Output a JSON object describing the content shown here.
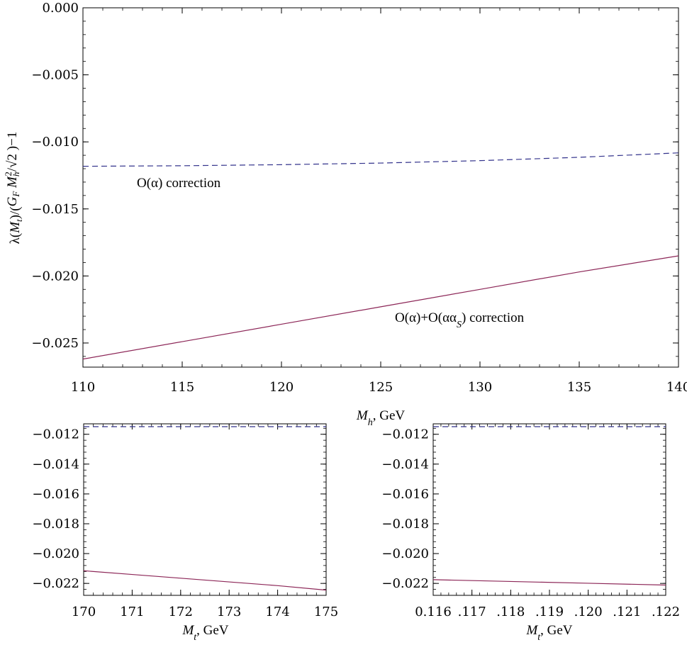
{
  "colors": {
    "dashed_series": "#33338c",
    "solid_series": "#8c2657",
    "frame": "#000000"
  },
  "chart_data": [
    {
      "type": "line",
      "xlabel": "M_h, GeV",
      "ylabel": "λ(M_t)/(G_F M_h^2/√2)−1",
      "xlim": [
        110,
        140
      ],
      "ylim": [
        -0.0268,
        0.0
      ],
      "x_ticks": [
        110,
        115,
        120,
        125,
        130,
        135,
        140
      ],
      "x_tick_labels": [
        "110",
        "115",
        "120",
        "125",
        "130",
        "135",
        "140"
      ],
      "y_ticks": [
        0.0,
        -0.005,
        -0.01,
        -0.015,
        -0.02,
        -0.025
      ],
      "y_tick_labels": [
        "0.000",
        "−0.005",
        "−0.010",
        "−0.015",
        "−0.020",
        "−0.025"
      ],
      "grid": false,
      "annotations": [
        "O(α) correction",
        "O(α)+O(αα_S) correction"
      ],
      "series": [
        {
          "name": "O(α) correction",
          "style": "dashed",
          "x": [
            110,
            115,
            120,
            125,
            130,
            135,
            140
          ],
          "y": [
            -0.01182,
            -0.01178,
            -0.0117,
            -0.01158,
            -0.0114,
            -0.01115,
            -0.01082
          ]
        },
        {
          "name": "O(α)+O(αα_S) correction",
          "style": "solid",
          "x": [
            110,
            115,
            120,
            125,
            130,
            135,
            140
          ],
          "y": [
            -0.0262,
            -0.0249,
            -0.0236,
            -0.0223,
            -0.021,
            -0.0197,
            -0.0185
          ]
        }
      ]
    },
    {
      "type": "line",
      "xlabel": "M_t, GeV",
      "xlim": [
        170,
        175
      ],
      "ylim": [
        -0.0228,
        -0.0113
      ],
      "x_ticks": [
        170,
        171,
        172,
        173,
        174,
        175
      ],
      "x_tick_labels": [
        "170",
        "171",
        "172",
        "173",
        "174",
        "175"
      ],
      "y_ticks": [
        -0.012,
        -0.014,
        -0.016,
        -0.018,
        -0.02,
        -0.022
      ],
      "y_tick_labels": [
        "−0.012",
        "−0.014",
        "−0.016",
        "−0.018",
        "−0.020",
        "−0.022"
      ],
      "grid": false,
      "series": [
        {
          "style": "dashed",
          "x": [
            170,
            175
          ],
          "y": [
            -0.01149,
            -0.01149
          ]
        },
        {
          "style": "solid",
          "x": [
            170,
            171,
            172,
            173,
            174,
            175
          ],
          "y": [
            -0.02115,
            -0.0214,
            -0.02165,
            -0.0219,
            -0.02215,
            -0.02245
          ]
        }
      ]
    },
    {
      "type": "line",
      "xlabel": "M_t, GeV",
      "xlim": [
        0.116,
        0.122
      ],
      "ylim": [
        -0.0228,
        -0.0113
      ],
      "x_ticks": [
        0.116,
        0.117,
        0.118,
        0.119,
        0.12,
        0.121,
        0.122
      ],
      "x_tick_labels": [
        "0.116",
        "0.117",
        "0.118",
        "0.119",
        "0.120",
        "0.121",
        "0.122"
      ],
      "y_ticks": [
        -0.012,
        -0.014,
        -0.016,
        -0.018,
        -0.02,
        -0.022
      ],
      "y_tick_labels": [
        "−0.012",
        "−0.014",
        "−0.016",
        "−0.018",
        "−0.020",
        "−0.022"
      ],
      "grid": false,
      "series": [
        {
          "style": "dashed",
          "x": [
            0.116,
            0.122
          ],
          "y": [
            -0.01149,
            -0.01149
          ]
        },
        {
          "style": "solid",
          "x": [
            0.116,
            0.118,
            0.12,
            0.122
          ],
          "y": [
            -0.02175,
            -0.02187,
            -0.02199,
            -0.02211
          ]
        }
      ]
    }
  ]
}
